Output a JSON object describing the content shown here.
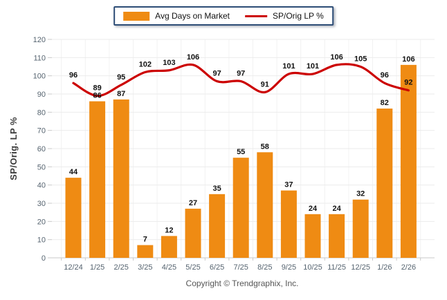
{
  "legend": {
    "items": [
      {
        "label": "Avg Days on Market",
        "type": "bar"
      },
      {
        "label": "SP/Orig LP %",
        "type": "line"
      }
    ],
    "border_color": "#2d4d76"
  },
  "footer": {
    "copyright": "Copyright © Trendgraphix, Inc."
  },
  "chart_data": {
    "type": "bar",
    "subtype": "bar+line combo",
    "categories": [
      "12/24",
      "1/25",
      "2/25",
      "3/25",
      "4/25",
      "5/25",
      "6/25",
      "7/25",
      "8/25",
      "9/25",
      "10/25",
      "11/25",
      "12/25",
      "1/26",
      "2/26"
    ],
    "series": [
      {
        "name": "Avg Days on Market",
        "type": "bar",
        "color": "#ef8b13",
        "values": [
          44,
          86,
          87,
          7,
          12,
          27,
          35,
          55,
          58,
          37,
          24,
          24,
          32,
          82,
          106
        ]
      },
      {
        "name": "SP/Orig LP %",
        "type": "line",
        "color": "#cc0000",
        "values": [
          96,
          89,
          95,
          102,
          103,
          106,
          97,
          97,
          91,
          101,
          101,
          106,
          105,
          96,
          92
        ]
      }
    ],
    "title": "",
    "xlabel": "",
    "ylabel": "SP/Orig. LP %",
    "ylim": [
      0,
      120
    ],
    "yticks": [
      0,
      10,
      20,
      30,
      40,
      50,
      60,
      70,
      80,
      90,
      100,
      110,
      120
    ],
    "grid": true,
    "data_labels": true,
    "legend_position": "top-center",
    "colors": {
      "grid": "#ebebeb",
      "vgrid": "#f2f2f2",
      "axis_line": "#c9c9c9",
      "tick_text": "#55636f",
      "data_label_text": "#111111"
    }
  }
}
